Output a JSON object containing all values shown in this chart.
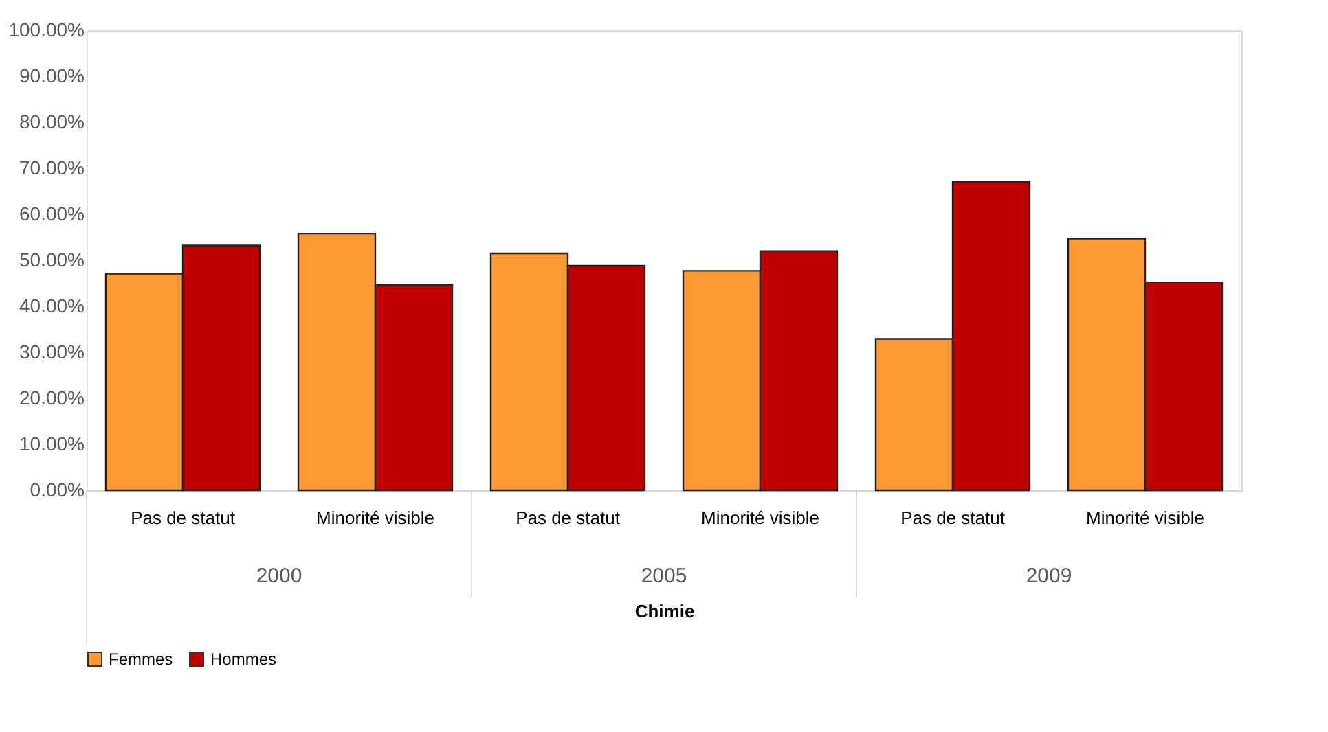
{
  "chart_data": {
    "type": "bar",
    "xlabel": "Chimie",
    "categories": [
      "Pas de statut",
      "Minorité visible",
      "Pas de statut",
      "Minorité visible",
      "Pas de statut",
      "Minorité visible"
    ],
    "annotations": [
      "2000",
      "2005",
      "2009"
    ],
    "series": [
      {
        "name": "Femmes",
        "color": "#ff9933",
        "values": [
          47.1,
          55.8,
          51.5,
          47.7,
          32.9,
          54.7
        ]
      },
      {
        "name": "Hommes",
        "color": "#c00000",
        "values": [
          53.2,
          44.6,
          48.8,
          52.0,
          67.0,
          45.2
        ]
      }
    ],
    "ylim": [
      0,
      100
    ],
    "yticks": [
      {
        "value": 0,
        "label": "0.00%"
      },
      {
        "value": 10,
        "label": "10.00%"
      },
      {
        "value": 20,
        "label": "20.00%"
      },
      {
        "value": 30,
        "label": "30.00%"
      },
      {
        "value": 40,
        "label": "40.00%"
      },
      {
        "value": 50,
        "label": "50.00%"
      },
      {
        "value": 60,
        "label": "60.00%"
      },
      {
        "value": 70,
        "label": "70.00%"
      },
      {
        "value": 80,
        "label": "80.00%"
      },
      {
        "value": 90,
        "label": "90.00%"
      },
      {
        "value": 100,
        "label": "100.00%"
      }
    ],
    "grid": false,
    "legend": "bottom"
  }
}
